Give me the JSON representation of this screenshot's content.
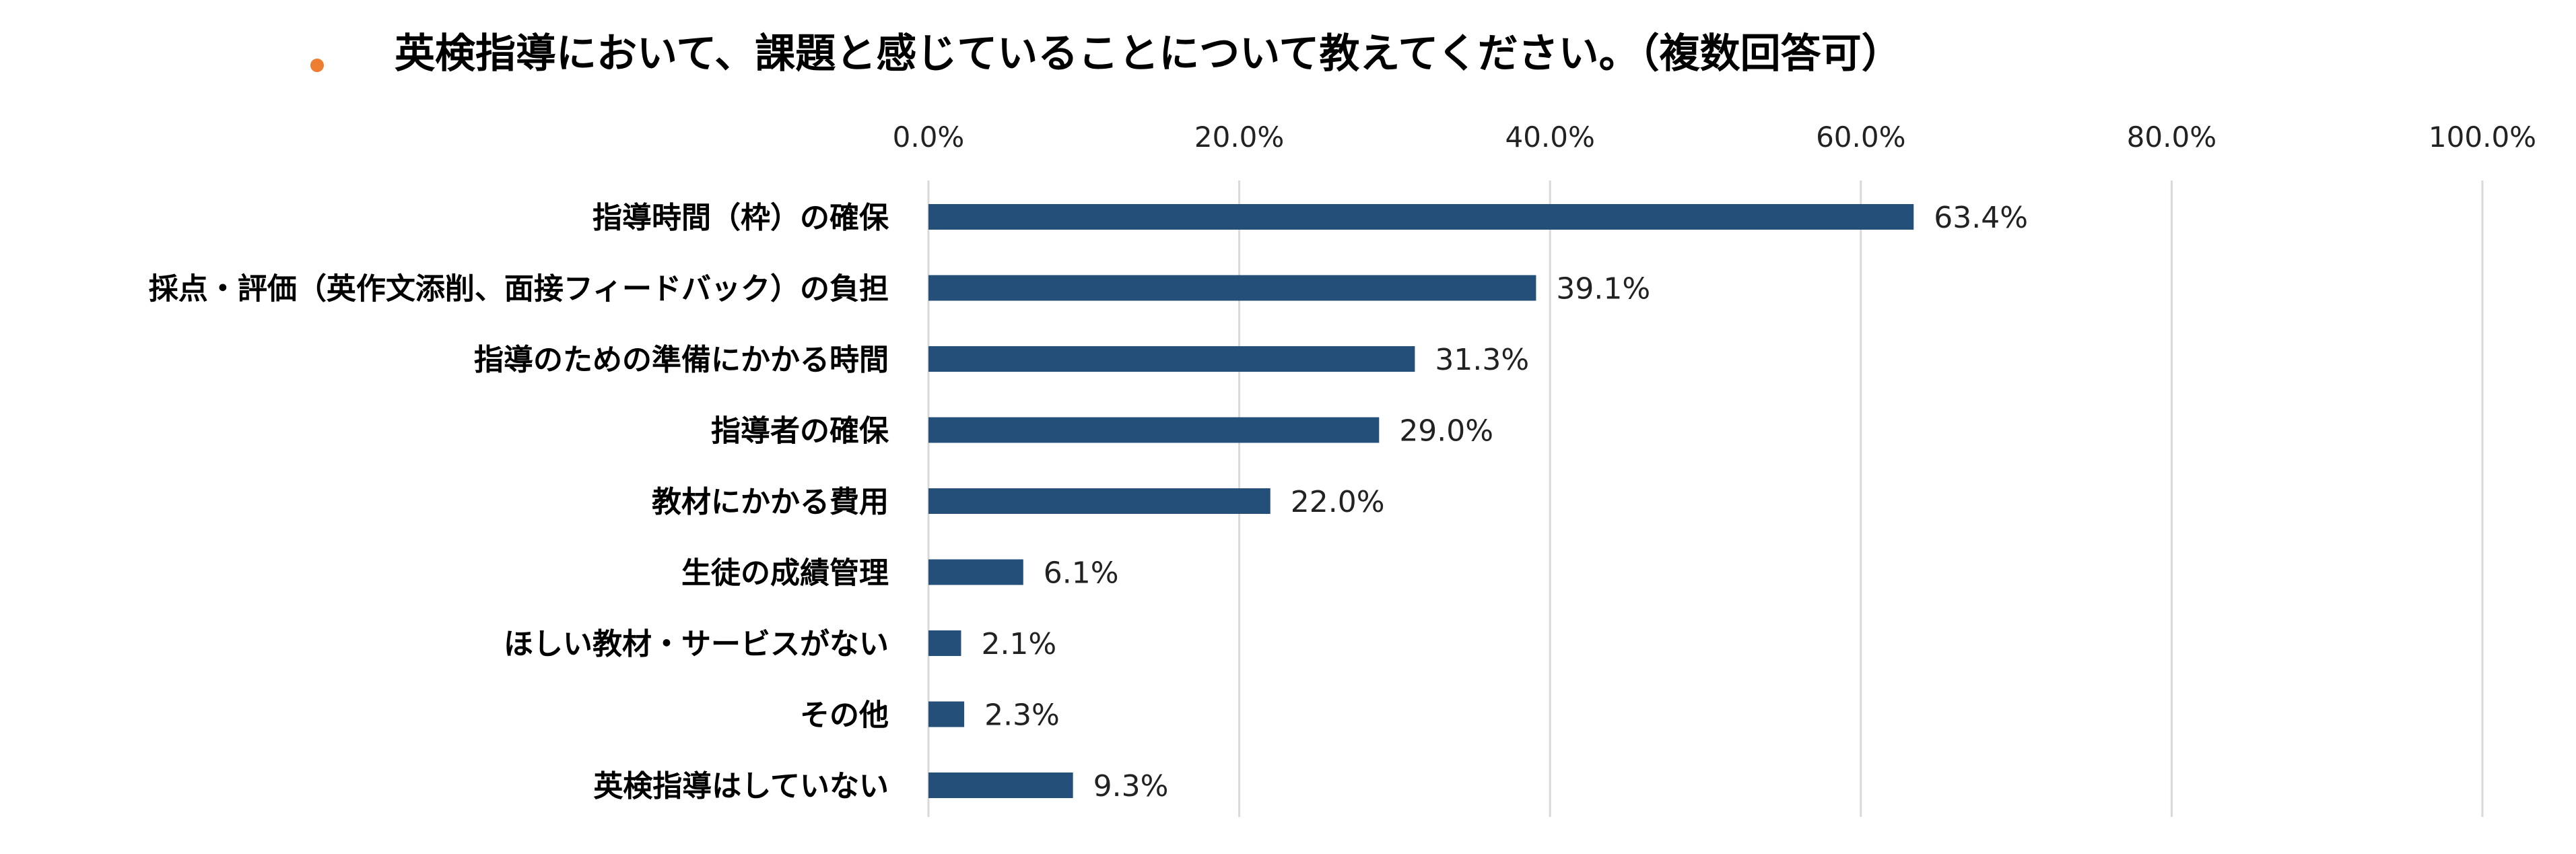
{
  "chart_data": {
    "type": "bar",
    "orientation": "horizontal",
    "title": "英検指導において、課題と感じていることについて教えてください。（複数回答可）",
    "categories": [
      "指導時間（枠）の確保",
      "採点・評価（英作文添削、面接フィードバック）の負担",
      "指導のための準備にかかる時間",
      "指導者の確保",
      "教材にかかる費用",
      "生徒の成績管理",
      "ほしい教材・サービスがない",
      "その他",
      "英検指導はしていない"
    ],
    "values": [
      63.4,
      39.1,
      31.3,
      29.0,
      22.0,
      6.1,
      2.1,
      2.3,
      9.3
    ],
    "value_labels": [
      "63.4%",
      "39.1%",
      "31.3%",
      "29.0%",
      "22.0%",
      "6.1%",
      "2.1%",
      "2.3%",
      "9.3%"
    ],
    "xlim": [
      0,
      100
    ],
    "x_ticks": [
      "0.0%",
      "20.0%",
      "40.0%",
      "60.0%",
      "80.0%",
      "100.0%"
    ],
    "x_tick_values": [
      0,
      20,
      40,
      60,
      80,
      100
    ],
    "xaxis_position": "top",
    "grid": true,
    "xlabel": "",
    "ylabel": "",
    "colors": {
      "bar": "#234f78",
      "bullet": "#ed7d31",
      "grid": "#d9d9d9"
    }
  }
}
